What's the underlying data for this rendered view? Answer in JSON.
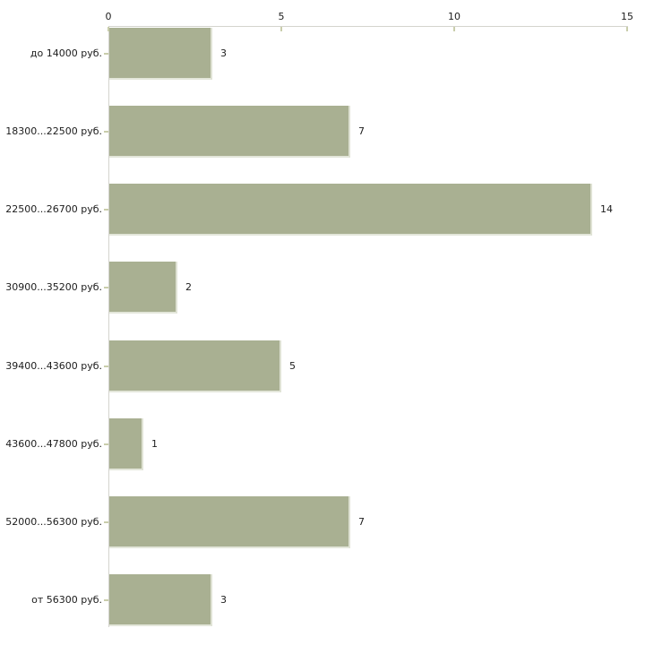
{
  "chart_data": {
    "type": "bar",
    "orientation": "horizontal",
    "title": "",
    "xlabel": "",
    "ylabel": "",
    "categories": [
      "до 14000 руб.",
      "18300...22500 руб.",
      "22500...26700 руб.",
      "30900...35200 руб.",
      "39400...43600 руб.",
      "43600...47800 руб.",
      "52000...56300 руб.",
      "от 56300 руб."
    ],
    "values": [
      3,
      7,
      14,
      2,
      5,
      1,
      7,
      3
    ],
    "x_axis": {
      "position": "top",
      "min": 0,
      "max": 15,
      "ticks": [
        0,
        5,
        10,
        15
      ]
    },
    "legend": "none",
    "grid": "off",
    "value_labels": "right-of-bar",
    "colors": {
      "bar_fill": "#a9b092",
      "bar_edge_highlight": "#dfe2d4",
      "axis_line": "#d4d4ce",
      "tick_mark": "#c9cdab",
      "label_text": "#1c1c1c",
      "background": "#ffffff"
    }
  }
}
